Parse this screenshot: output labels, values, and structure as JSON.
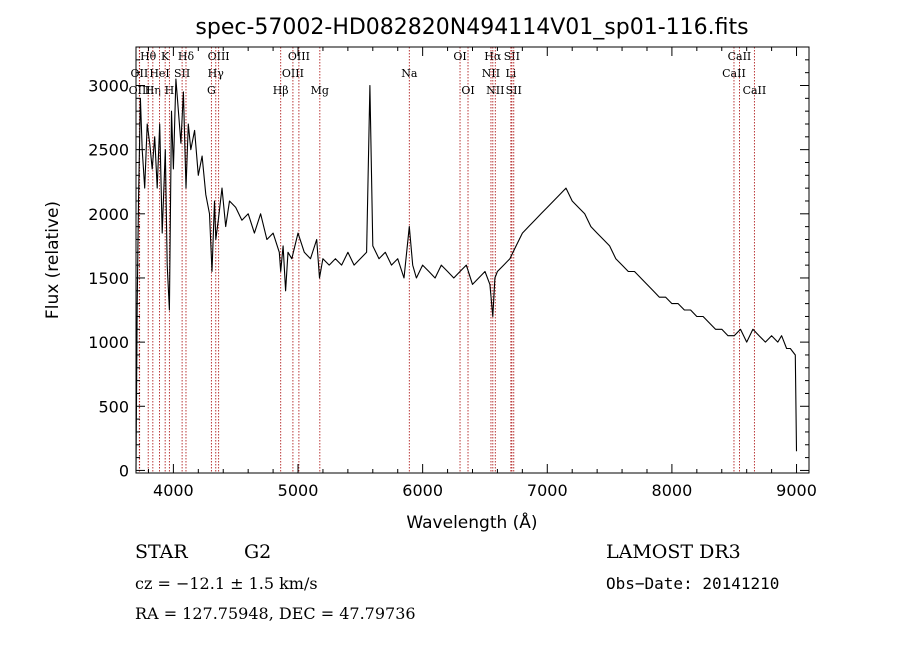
{
  "chart_data": {
    "type": "line",
    "title": "spec-57002-HD082820N494114V01_sp01-116.fits",
    "xlabel": "Wavelength (Å)",
    "ylabel": "Flux (relative)",
    "xlim": [
      3700,
      9100
    ],
    "ylim": [
      -20,
      3300
    ],
    "xticks": [
      4000,
      5000,
      6000,
      7000,
      8000,
      9000
    ],
    "yticks": [
      0,
      500,
      1000,
      1500,
      2000,
      2500,
      3000
    ],
    "grid": false,
    "series": [
      {
        "x": [
          3700,
          3710,
          3720,
          3735,
          3750,
          3770,
          3790,
          3810,
          3830,
          3850,
          3870,
          3890,
          3910,
          3935,
          3950,
          3968,
          3985,
          4000,
          4020,
          4040,
          4060,
          4080,
          4101,
          4120,
          4140,
          4170,
          4200,
          4230,
          4260,
          4290,
          4310,
          4330,
          4340,
          4360,
          4390,
          4420,
          4450,
          4500,
          4550,
          4600,
          4650,
          4700,
          4750,
          4800,
          4850,
          4861,
          4880,
          4900,
          4920,
          4950,
          5000,
          5050,
          5100,
          5150,
          5172,
          5200,
          5250,
          5300,
          5350,
          5400,
          5450,
          5500,
          5550,
          5577,
          5600,
          5650,
          5700,
          5750,
          5800,
          5850,
          5893,
          5920,
          5950,
          6000,
          6050,
          6100,
          6150,
          6200,
          6250,
          6300,
          6350,
          6400,
          6450,
          6500,
          6540,
          6563,
          6580,
          6600,
          6650,
          6700,
          6750,
          6800,
          6850,
          6900,
          6950,
          7000,
          7050,
          7100,
          7150,
          7200,
          7250,
          7300,
          7350,
          7400,
          7450,
          7500,
          7550,
          7600,
          7650,
          7700,
          7750,
          7800,
          7850,
          7900,
          7950,
          8000,
          8050,
          8100,
          8150,
          8200,
          8250,
          8300,
          8350,
          8400,
          8450,
          8500,
          8550,
          8600,
          8650,
          8700,
          8750,
          8800,
          8850,
          8880,
          8900,
          8920,
          8950,
          8990,
          9000
        ],
        "values": [
          0,
          1300,
          2100,
          2900,
          2500,
          2200,
          2700,
          2550,
          2350,
          2600,
          2200,
          2700,
          1850,
          2500,
          1600,
          1250,
          2800,
          2350,
          3050,
          2800,
          2550,
          2950,
          2200,
          2700,
          2500,
          2650,
          2300,
          2450,
          2150,
          2000,
          1550,
          2100,
          1800,
          1950,
          2200,
          1900,
          2100,
          2050,
          1950,
          2000,
          1850,
          2000,
          1800,
          1850,
          1700,
          1550,
          1750,
          1400,
          1700,
          1650,
          1850,
          1700,
          1650,
          1800,
          1500,
          1650,
          1600,
          1650,
          1600,
          1700,
          1600,
          1650,
          1700,
          3000,
          1750,
          1650,
          1700,
          1600,
          1650,
          1500,
          1900,
          1600,
          1500,
          1600,
          1550,
          1500,
          1600,
          1550,
          1500,
          1550,
          1600,
          1450,
          1500,
          1550,
          1450,
          1200,
          1500,
          1550,
          1600,
          1650,
          1750,
          1850,
          1900,
          1950,
          2000,
          2050,
          2100,
          2150,
          2200,
          2100,
          2050,
          2000,
          1900,
          1850,
          1800,
          1750,
          1650,
          1600,
          1550,
          1550,
          1500,
          1450,
          1400,
          1350,
          1350,
          1300,
          1300,
          1250,
          1250,
          1200,
          1200,
          1150,
          1100,
          1100,
          1050,
          1050,
          1100,
          1000,
          1100,
          1050,
          1000,
          1050,
          1000,
          1050,
          1000,
          950,
          950,
          900,
          150
        ]
      }
    ],
    "lines": [
      {
        "label": "Hθ",
        "x": 3798,
        "row": 0
      },
      {
        "label": "OII",
        "x": 3727,
        "row": 1
      },
      {
        "label": "OIII",
        "x": 3729,
        "row": 2
      },
      {
        "label": "Hη",
        "x": 3835,
        "row": 2
      },
      {
        "label": "K",
        "x": 3934,
        "row": 0
      },
      {
        "label": "HeI",
        "x": 3889,
        "row": 1
      },
      {
        "label": "H",
        "x": 3968,
        "row": 2
      },
      {
        "label": "Hδ",
        "x": 4101,
        "row": 0
      },
      {
        "label": "SII",
        "x": 4070,
        "row": 1
      },
      {
        "label": "OIII",
        "x": 4363,
        "row": 0
      },
      {
        "label": "Hγ",
        "x": 4340,
        "row": 1
      },
      {
        "label": "G",
        "x": 4305,
        "row": 2
      },
      {
        "label": "Hβ",
        "x": 4861,
        "row": 2
      },
      {
        "label": "OIII",
        "x": 4959,
        "row": 1
      },
      {
        "label": "OIII",
        "x": 5007,
        "row": 0
      },
      {
        "label": "Mg",
        "x": 5175,
        "row": 2
      },
      {
        "label": "Na",
        "x": 5893,
        "row": 1
      },
      {
        "label": "OI",
        "x": 6300,
        "row": 0
      },
      {
        "label": "OI",
        "x": 6364,
        "row": 2
      },
      {
        "label": "Hα",
        "x": 6563,
        "row": 0
      },
      {
        "label": "NII",
        "x": 6548,
        "row": 1
      },
      {
        "label": "NII",
        "x": 6583,
        "row": 2
      },
      {
        "label": "SII",
        "x": 6716,
        "row": 0
      },
      {
        "label": "Li",
        "x": 6708,
        "row": 1
      },
      {
        "label": "SII",
        "x": 6731,
        "row": 2
      },
      {
        "label": "CaII",
        "x": 8542,
        "row": 0
      },
      {
        "label": "CaII",
        "x": 8498,
        "row": 1
      },
      {
        "label": "CaII",
        "x": 8662,
        "row": 2
      }
    ]
  },
  "info": {
    "object_type": "STAR",
    "subclass": "G2",
    "survey": "LAMOST DR3",
    "cz": "cz = −12.1 ± 1.5 km/s",
    "obs_date": "Obs−Date: 20141210",
    "coords": "RA = 127.75948, DEC =  47.79736"
  },
  "colors": {
    "spectrum": "#000000",
    "line_markers": "#b22222"
  }
}
